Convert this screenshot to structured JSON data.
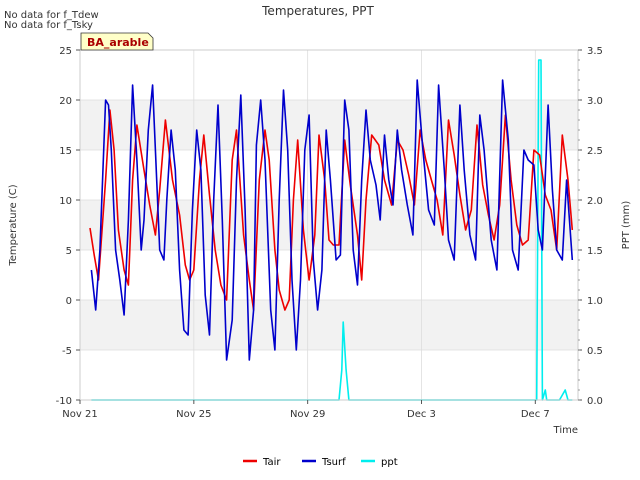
{
  "notes": [
    "No data for f_Tdew",
    "No data for f_Tsky"
  ],
  "chart_data": {
    "type": "line",
    "title": "Temperatures, PPT",
    "site_label": "BA_arable",
    "xlabel": "Time",
    "ylabel_left": "Temperature (C)",
    "ylabel_right": "PPT (mm)",
    "ylim_left": [
      -10,
      25
    ],
    "ylim_right": [
      0.0,
      3.5
    ],
    "xlim_days": [
      0,
      17.5
    ],
    "x_tick_days": [
      0,
      4,
      8,
      12,
      16
    ],
    "x_tick_labels": [
      "Nov 21",
      "Nov 25",
      "Nov 29",
      "Dec 3",
      "Dec 7"
    ],
    "y_ticks_left": [
      -10,
      -5,
      0,
      5,
      10,
      15,
      20,
      25
    ],
    "y_ticks_right": [
      "0.0",
      "0.5",
      "1.0",
      "1.5",
      "2.0",
      "2.5",
      "3.0",
      "3.5"
    ],
    "grid": true,
    "legend_position": "bottom-center",
    "series": [
      {
        "name": "Tair",
        "color": "#ee0000",
        "axis": "left",
        "x": [
          0.35,
          0.5,
          0.65,
          0.9,
          1.05,
          1.2,
          1.35,
          1.55,
          1.7,
          1.85,
          2.0,
          2.25,
          2.45,
          2.65,
          2.8,
          3.0,
          3.25,
          3.5,
          3.7,
          3.85,
          4.0,
          4.2,
          4.35,
          4.55,
          4.75,
          4.95,
          5.15,
          5.35,
          5.5,
          5.75,
          5.95,
          6.1,
          6.3,
          6.5,
          6.65,
          6.85,
          7.0,
          7.2,
          7.35,
          7.5,
          7.65,
          7.85,
          8.05,
          8.25,
          8.4,
          8.6,
          8.75,
          8.9,
          9.1,
          9.3,
          9.5,
          9.75,
          9.9,
          10.05,
          10.25,
          10.5,
          10.7,
          10.95,
          11.15,
          11.35,
          11.55,
          11.75,
          11.95,
          12.15,
          12.35,
          12.55,
          12.75,
          12.95,
          13.15,
          13.35,
          13.55,
          13.75,
          13.95,
          14.15,
          14.35,
          14.55,
          14.75,
          14.95,
          15.15,
          15.35,
          15.55,
          15.75,
          15.95,
          16.15,
          16.35,
          16.55,
          16.75,
          16.95,
          17.15,
          17.3
        ],
        "y": [
          7.2,
          4.5,
          2.0,
          12.0,
          19.0,
          15.0,
          7.0,
          3.0,
          1.5,
          12.0,
          17.5,
          13.0,
          9.5,
          6.5,
          11.0,
          18.0,
          12.0,
          8.5,
          3.5,
          2.0,
          3.0,
          12.0,
          16.5,
          10.5,
          5.0,
          1.5,
          0.0,
          14.0,
          17.0,
          6.5,
          2.0,
          -1.0,
          12.0,
          17.0,
          14.0,
          5.0,
          1.0,
          -1.0,
          0.0,
          10.0,
          16.0,
          7.0,
          2.0,
          6.5,
          16.5,
          12.0,
          6.0,
          5.5,
          5.5,
          16.0,
          11.5,
          6.5,
          2.0,
          10.0,
          16.5,
          15.5,
          12.0,
          9.5,
          16.0,
          15.0,
          12.5,
          9.5,
          17.0,
          14.0,
          12.0,
          10.0,
          6.5,
          18.0,
          14.5,
          10.5,
          7.0,
          9.0,
          17.5,
          11.5,
          8.5,
          6.0,
          9.5,
          18.5,
          12.0,
          7.5,
          5.5,
          6.0,
          15.0,
          14.5,
          10.5,
          9.0,
          5.0,
          16.5,
          12.0,
          7.0
        ]
      },
      {
        "name": "Tsurf",
        "color": "#0000cc",
        "axis": "left",
        "x": [
          0.4,
          0.55,
          0.7,
          0.9,
          1.0,
          1.1,
          1.25,
          1.4,
          1.55,
          1.7,
          1.85,
          2.0,
          2.15,
          2.25,
          2.4,
          2.55,
          2.65,
          2.8,
          2.95,
          3.05,
          3.2,
          3.35,
          3.5,
          3.65,
          3.8,
          3.95,
          4.1,
          4.25,
          4.4,
          4.55,
          4.7,
          4.85,
          5.0,
          5.15,
          5.35,
          5.5,
          5.65,
          5.8,
          5.95,
          6.1,
          6.2,
          6.35,
          6.5,
          6.7,
          6.85,
          7.0,
          7.15,
          7.3,
          7.45,
          7.6,
          7.75,
          7.9,
          8.05,
          8.2,
          8.35,
          8.5,
          8.65,
          8.8,
          9.0,
          9.15,
          9.3,
          9.45,
          9.6,
          9.75,
          9.9,
          10.05,
          10.2,
          10.4,
          10.55,
          10.7,
          10.85,
          11.0,
          11.15,
          11.3,
          11.5,
          11.7,
          11.85,
          12.05,
          12.25,
          12.45,
          12.6,
          12.8,
          12.95,
          13.15,
          13.35,
          13.5,
          13.7,
          13.9,
          14.05,
          14.2,
          14.45,
          14.65,
          14.85,
          15.05,
          15.2,
          15.4,
          15.6,
          15.75,
          15.95,
          16.1,
          16.25,
          16.45,
          16.6,
          16.75,
          16.95,
          17.1,
          17.3
        ],
        "y": [
          3.0,
          -1.0,
          5.0,
          20.0,
          19.5,
          15.0,
          5.0,
          2.0,
          -1.5,
          8.0,
          21.5,
          14.0,
          5.0,
          8.0,
          17.0,
          21.5,
          15.0,
          5.0,
          4.0,
          10.0,
          17.0,
          13.0,
          3.0,
          -3.0,
          -3.5,
          9.0,
          17.0,
          13.0,
          0.5,
          -3.5,
          10.0,
          19.5,
          8.0,
          -6.0,
          -2.0,
          12.0,
          20.5,
          9.0,
          -6.0,
          -1.0,
          15.5,
          20.0,
          14.0,
          -1.0,
          -5.0,
          10.0,
          21.0,
          15.0,
          2.0,
          -5.0,
          2.0,
          15.0,
          18.5,
          4.0,
          -1.0,
          3.0,
          17.0,
          12.0,
          4.0,
          4.5,
          20.0,
          17.0,
          5.0,
          1.5,
          12.0,
          19.0,
          14.0,
          11.5,
          8.0,
          16.5,
          12.0,
          9.5,
          17.0,
          13.0,
          9.5,
          6.5,
          22.0,
          15.0,
          9.0,
          7.5,
          21.5,
          13.0,
          6.0,
          4.0,
          19.5,
          13.0,
          6.5,
          4.0,
          18.5,
          15.0,
          6.0,
          3.0,
          22.0,
          16.0,
          5.0,
          3.0,
          15.0,
          14.0,
          13.5,
          7.0,
          5.0,
          19.5,
          11.0,
          5.0,
          4.0,
          12.0,
          4.0
        ]
      },
      {
        "name": "ppt",
        "color": "#00eeee",
        "axis": "right",
        "x": [
          0.4,
          9.1,
          9.2,
          9.25,
          9.35,
          9.45,
          9.5,
          15.7,
          15.85,
          16.05,
          16.12,
          16.2,
          16.25,
          16.35,
          16.4,
          16.5,
          16.6,
          16.85,
          17.05,
          17.15,
          17.3
        ],
        "y": [
          0.0,
          0.0,
          0.3,
          0.78,
          0.3,
          0.0,
          0.0,
          0.0,
          0.0,
          0.0,
          3.4,
          3.4,
          0.0,
          0.1,
          0.0,
          0.0,
          0.0,
          0.0,
          0.1,
          0.0,
          0.0
        ]
      }
    ]
  }
}
